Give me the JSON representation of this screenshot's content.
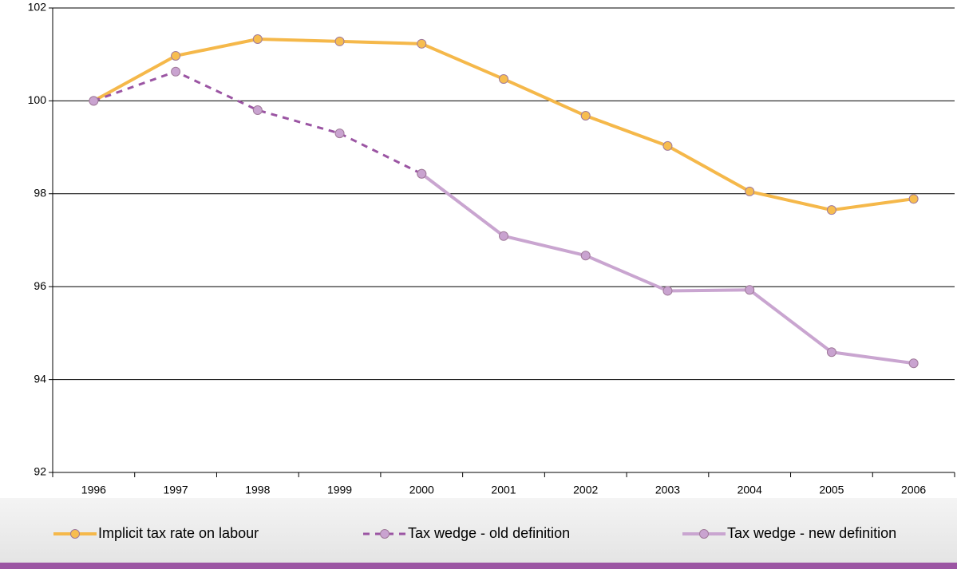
{
  "chart_data": {
    "type": "line",
    "categories": [
      "1996",
      "1997",
      "1998",
      "1999",
      "2000",
      "2001",
      "2002",
      "2003",
      "2004",
      "2005",
      "2006"
    ],
    "series": [
      {
        "name": "Implicit tax rate on labour",
        "color": "#f5b84a",
        "marker_color": "#f7bd4f",
        "dashed": false,
        "values": [
          100,
          100.97,
          101.33,
          101.28,
          101.23,
          100.47,
          99.68,
          99.03,
          98.05,
          97.65,
          97.89
        ]
      },
      {
        "name": "Tax wedge - old definition",
        "color": "#9b55a3",
        "marker_color": "#c9a3d0",
        "dashed": true,
        "values": [
          100,
          100.63,
          99.8,
          99.3,
          98.43,
          null,
          null,
          null,
          null,
          null,
          null
        ]
      },
      {
        "name": "Tax wedge - new definition",
        "color": "#c9a5d0",
        "marker_color": "#c9a3d0",
        "dashed": false,
        "values": [
          null,
          null,
          null,
          null,
          98.43,
          97.09,
          96.67,
          95.91,
          95.93,
          94.59,
          94.35
        ]
      }
    ],
    "ylim": [
      92,
      102
    ],
    "yticks": [
      92,
      94,
      96,
      98,
      100,
      102
    ],
    "grid": true
  }
}
